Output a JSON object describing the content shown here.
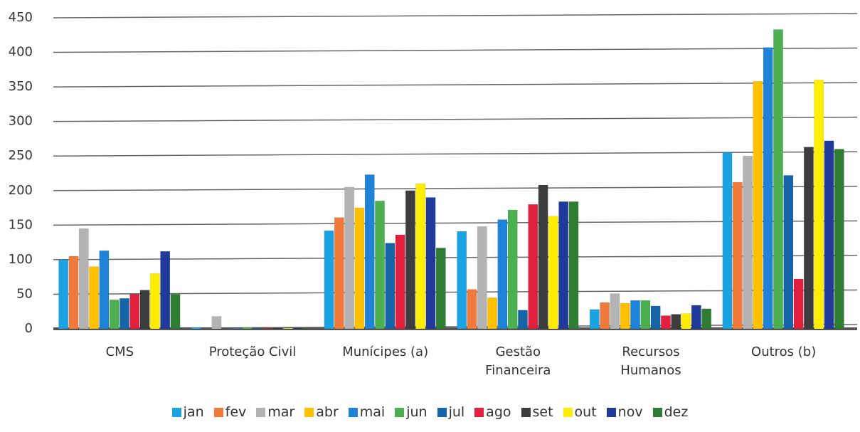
{
  "chart_data": {
    "type": "bar",
    "categories": [
      "CMS",
      "Proteção Civil",
      "Munícipes (a)",
      "Gestão\nFinanceira",
      "Recursos\nHumanos",
      "Outros (b)"
    ],
    "series": [
      {
        "name": "jan",
        "color": "#1aa3e0",
        "values": [
          100,
          2,
          142,
          141,
          28,
          255
        ]
      },
      {
        "name": "fev",
        "color": "#f07a3c",
        "values": [
          105,
          0,
          161,
          57,
          38,
          212
        ]
      },
      {
        "name": "mar",
        "color": "#b3b3b3",
        "values": [
          145,
          18,
          205,
          148,
          51,
          250
        ]
      },
      {
        "name": "abr",
        "color": "#ffc000",
        "values": [
          90,
          0,
          175,
          45,
          37,
          358
        ]
      },
      {
        "name": "mai",
        "color": "#1e82d6",
        "values": [
          113,
          1,
          223,
          158,
          41,
          407
        ]
      },
      {
        "name": "jun",
        "color": "#4caf50",
        "values": [
          42,
          2,
          185,
          172,
          41,
          433
        ]
      },
      {
        "name": "jul",
        "color": "#1565a8",
        "values": [
          44,
          1,
          124,
          27,
          33,
          222
        ]
      },
      {
        "name": "ago",
        "color": "#e0203c",
        "values": [
          50,
          1,
          136,
          180,
          19,
          72
        ]
      },
      {
        "name": "set",
        "color": "#3d3d3d",
        "values": [
          56,
          1,
          200,
          208,
          21,
          263
        ]
      },
      {
        "name": "out",
        "color": "#ffee00",
        "values": [
          80,
          1,
          210,
          163,
          22,
          360
        ]
      },
      {
        "name": "nov",
        "color": "#1f3a9a",
        "values": [
          112,
          1,
          190,
          184,
          34,
          272
        ]
      },
      {
        "name": "dez",
        "color": "#2e7d32",
        "values": [
          50,
          1,
          117,
          184,
          29,
          260
        ]
      }
    ],
    "ylim": [
      0,
      450
    ],
    "yticks": [
      0,
      50,
      100,
      150,
      200,
      250,
      300,
      350,
      400,
      450
    ],
    "grid": true
  }
}
